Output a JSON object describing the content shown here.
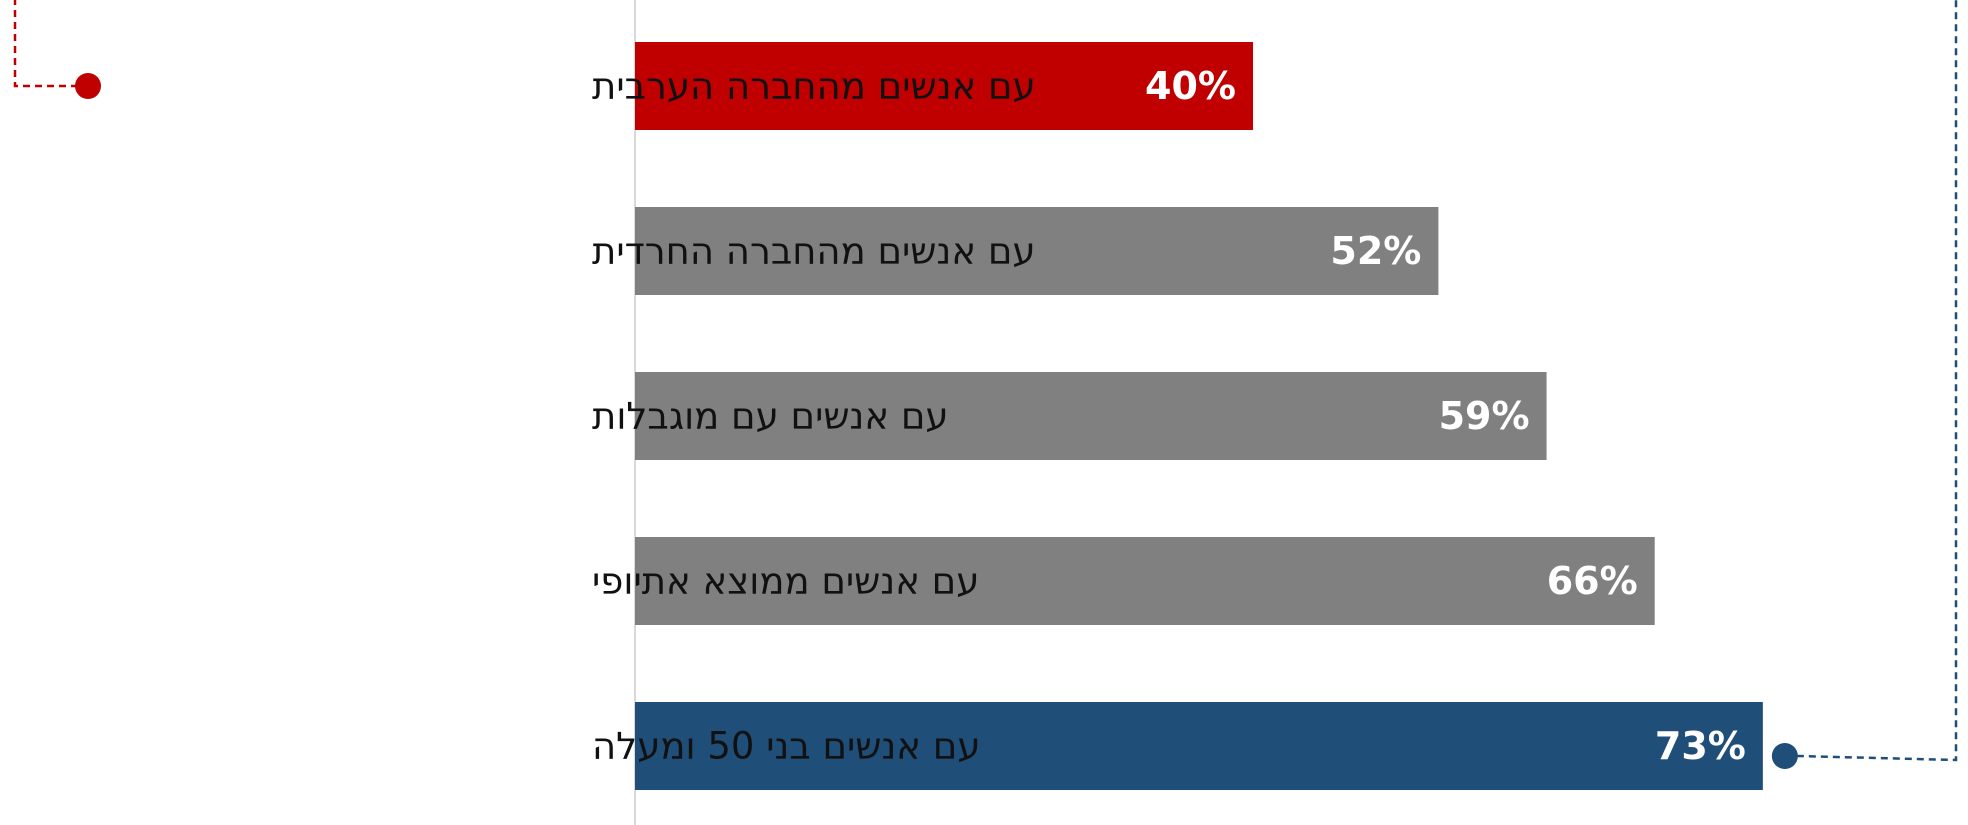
{
  "chart_data": {
    "type": "bar",
    "orientation": "horizontal",
    "categories": [
      "עם אנשים מהחברה הערבית",
      "עם אנשים מהחברה החרדית",
      "עם אנשים עם מוגבלות",
      "עם אנשים ממוצא אתיופי",
      "עם אנשים בני 50 ומעלה"
    ],
    "values": [
      40,
      52,
      59,
      66,
      73
    ],
    "value_labels": [
      "40%",
      "52%",
      "59%",
      "66%",
      "73%"
    ],
    "value_unit": "%",
    "xlim": [
      0,
      100
    ],
    "title": "",
    "xlabel": "",
    "ylabel": "",
    "grid": false,
    "legend": "none",
    "colors": {
      "highlight_low": "#c00000",
      "default": "#808080",
      "highlight_high": "#1f4e79",
      "axis": "#d9d9d9",
      "label_text": "#111111",
      "value_text": "#ffffff"
    },
    "bar_colors": [
      "#c00000",
      "#808080",
      "#808080",
      "#808080",
      "#1f4e79"
    ],
    "connector": {
      "style": "dashed",
      "from_color": "#c00000",
      "to_color": "#1f4e79"
    }
  }
}
